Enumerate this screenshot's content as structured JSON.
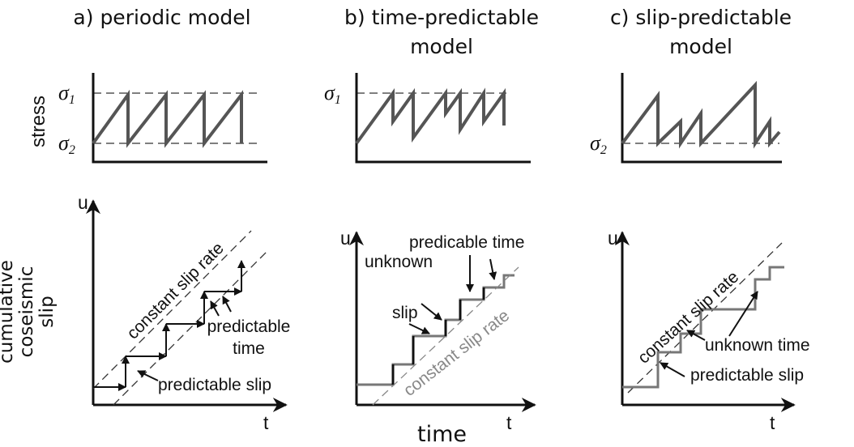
{
  "titles": [
    [
      "a) periodic model"
    ],
    [
      "b) time-predictable",
      "model"
    ],
    [
      "c) slip-predictable",
      "model"
    ]
  ],
  "stress_axis_label": "stress",
  "sigma1": {
    "symbol": "σ",
    "subscript": "1"
  },
  "sigma2": {
    "symbol": "σ",
    "subscript": "2"
  },
  "slip_axis_label": [
    "cumulative",
    "coseismic",
    "slip"
  ],
  "u_label": "u",
  "t_label": "t",
  "time_label": "time",
  "annotations": {
    "a": {
      "rate": "constant slip rate",
      "time": [
        "predictable",
        "time"
      ],
      "slip": "predictable slip"
    },
    "b": {
      "unknown": "unknown",
      "slip": "slip",
      "time": "predicable time",
      "rate": "constant slip rate"
    },
    "c": {
      "rate": "constant slip rate",
      "time": "unknown time",
      "slip": "predictable slip"
    }
  }
}
